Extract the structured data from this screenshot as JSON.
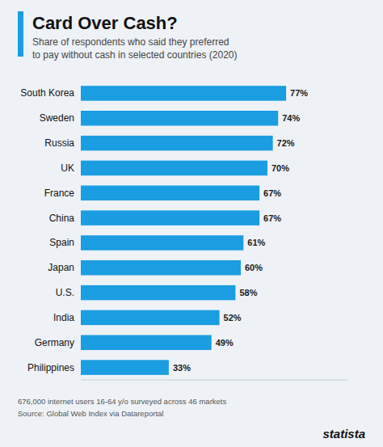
{
  "chart_data": {
    "type": "bar",
    "orientation": "horizontal",
    "title": "Card Over Cash?",
    "subtitle": "Share of respondents who said they preferred\nto pay without cash in selected countries (2020)",
    "categories": [
      "South Korea",
      "Sweden",
      "Russia",
      "UK",
      "France",
      "China",
      "Spain",
      "Japan",
      "U.S.",
      "India",
      "Germany",
      "Philippines"
    ],
    "values": [
      77,
      74,
      72,
      70,
      67,
      67,
      61,
      60,
      58,
      52,
      49,
      33
    ],
    "value_labels": [
      "77%",
      "74%",
      "72%",
      "70%",
      "67%",
      "67%",
      "61%",
      "60%",
      "58%",
      "52%",
      "49%",
      "33%"
    ],
    "data_labels": true,
    "color": "#1a9de1",
    "xlim": [
      0,
      100
    ],
    "grid": false,
    "tick_labels": "y",
    "annotations": [
      "676,000 internet users 16-64 y/o surveyed across 46 markets",
      "Source: Global Web Index via Datareportal",
      "statista"
    ]
  }
}
